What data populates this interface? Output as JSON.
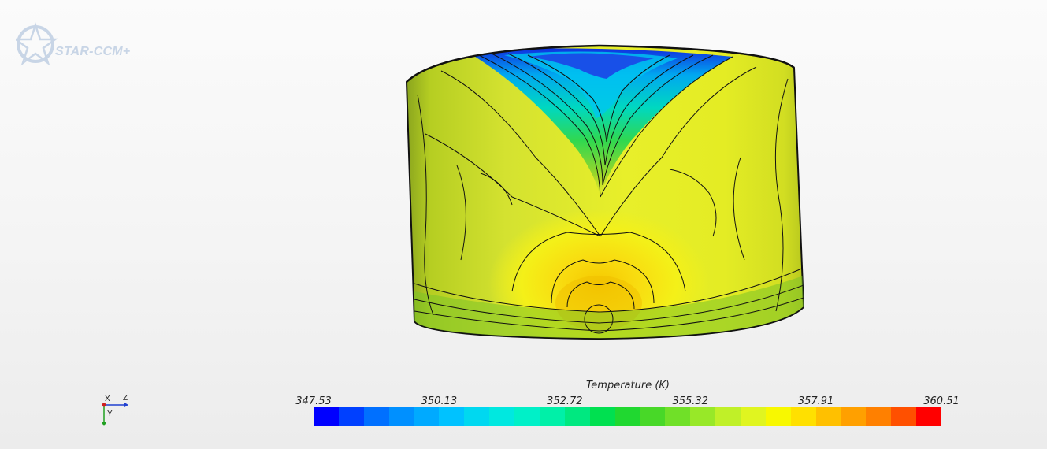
{
  "logo": {
    "text": "STAR-CCM+",
    "color": "#c8d5e6"
  },
  "triad": {
    "x_label": "X",
    "z_label": "Z",
    "y_label": "Y"
  },
  "legend": {
    "title": "Temperature (K)",
    "ticks": [
      "347.53",
      "350.13",
      "352.72",
      "355.32",
      "357.91",
      "360.51"
    ],
    "min": 347.53,
    "max": 360.51,
    "colors": [
      "#0000ff",
      "#0040ff",
      "#0070ff",
      "#0090ff",
      "#00aaff",
      "#00c2ff",
      "#00d8f0",
      "#00e8e0",
      "#00f0c8",
      "#00f0a8",
      "#00e880",
      "#00e050",
      "#20d830",
      "#48d828",
      "#70e028",
      "#98e828",
      "#c0f028",
      "#e0f520",
      "#f8f800",
      "#ffe000",
      "#ffc000",
      "#ffa000",
      "#ff8000",
      "#ff5000",
      "#ff0000"
    ]
  }
}
